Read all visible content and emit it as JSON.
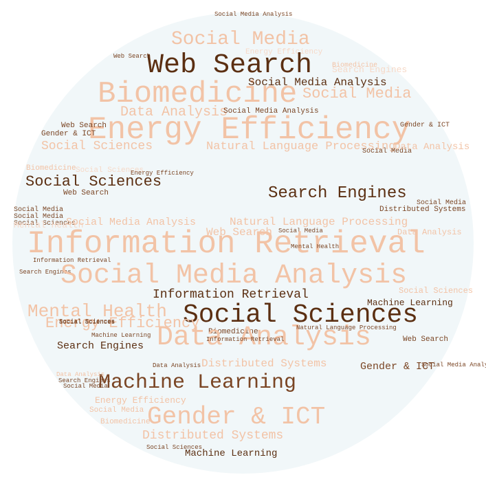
{
  "colors": {
    "background": "#ffffff",
    "circle": "#f1f7f9",
    "dark": "#5b2f12",
    "brown": "#7a4524",
    "light": "#f2c3a6",
    "faint": "#f6d9c8"
  },
  "words": [
    {
      "text": "Social Media Analysis",
      "tone": "brown"
    },
    {
      "text": "Social Media",
      "tone": "light"
    },
    {
      "text": "Energy Efficiency",
      "tone": "faint"
    },
    {
      "text": "Web Search",
      "tone": "dark"
    },
    {
      "text": "Web Search",
      "tone": "brown"
    },
    {
      "text": "Biomedicine",
      "tone": "light"
    },
    {
      "text": "Search Engines",
      "tone": "faint"
    },
    {
      "text": "Social Media Analysis",
      "tone": "dark"
    },
    {
      "text": "Biomedicine",
      "tone": "light"
    },
    {
      "text": "Social Media",
      "tone": "light"
    },
    {
      "text": "Data Analysis",
      "tone": "light"
    },
    {
      "text": "Social Media Analysis",
      "tone": "brown"
    },
    {
      "text": "Energy Efficiency",
      "tone": "light"
    },
    {
      "text": "Web Search",
      "tone": "brown"
    },
    {
      "text": "Gender & ICT",
      "tone": "brown"
    },
    {
      "text": "Gender & ICT",
      "tone": "brown"
    },
    {
      "text": "Social Sciences",
      "tone": "light"
    },
    {
      "text": "Natural Language Processing",
      "tone": "light"
    },
    {
      "text": "Social Media",
      "tone": "brown"
    },
    {
      "text": "Data Analysis",
      "tone": "light"
    },
    {
      "text": "Biomedicine",
      "tone": "light"
    },
    {
      "text": "Social Sciences",
      "tone": "faint"
    },
    {
      "text": "Energy Efficiency",
      "tone": "brown"
    },
    {
      "text": "Social Sciences",
      "tone": "dark"
    },
    {
      "text": "Web Search",
      "tone": "brown"
    },
    {
      "text": "Search Engines",
      "tone": "dark"
    },
    {
      "text": "Social Media",
      "tone": "brown"
    },
    {
      "text": "Distributed Systems",
      "tone": "brown"
    },
    {
      "text": "Social Media",
      "tone": "brown"
    },
    {
      "text": "Social Media",
      "tone": "brown"
    },
    {
      "text": "Social Sciences",
      "tone": "brown"
    },
    {
      "text": "Mental Health",
      "tone": "faint"
    },
    {
      "text": "Social Media Analysis",
      "tone": "light"
    },
    {
      "text": "Natural Language Processing",
      "tone": "light"
    },
    {
      "text": "Web Search",
      "tone": "light"
    },
    {
      "text": "Social Media",
      "tone": "brown"
    },
    {
      "text": "Data Analysis",
      "tone": "light"
    },
    {
      "text": "Information Retrieval",
      "tone": "light"
    },
    {
      "text": "Mental Health",
      "tone": "brown"
    },
    {
      "text": "Information Retrieval",
      "tone": "brown"
    },
    {
      "text": "Search Engines",
      "tone": "brown"
    },
    {
      "text": "Social Media Analysis",
      "tone": "light"
    },
    {
      "text": "Information Retrieval",
      "tone": "dark"
    },
    {
      "text": "Mental Health",
      "tone": "light"
    },
    {
      "text": "Social Sciences",
      "tone": "light"
    },
    {
      "text": "Machine Learning",
      "tone": "dark"
    },
    {
      "text": "Social Sciences",
      "tone": "dark"
    },
    {
      "text": "Energy Efficiency",
      "tone": "light"
    },
    {
      "text": "Biomedicine",
      "tone": "brown"
    },
    {
      "text": "Social Sciences",
      "tone": "brown"
    },
    {
      "text": "Machine Learning",
      "tone": "brown"
    },
    {
      "text": "Data Analysis",
      "tone": "light"
    },
    {
      "text": "Search Engines",
      "tone": "dark"
    },
    {
      "text": "Web Search",
      "tone": "brown"
    },
    {
      "text": "Gender & ICT",
      "tone": "brown"
    },
    {
      "text": "Data Analysis",
      "tone": "brown"
    },
    {
      "text": "Distributed Systems",
      "tone": "light"
    },
    {
      "text": "Machine Learning",
      "tone": "brown"
    },
    {
      "text": "Energy Efficiency",
      "tone": "light"
    },
    {
      "text": "Gender & ICT",
      "tone": "light"
    },
    {
      "text": "Social Media",
      "tone": "light"
    },
    {
      "text": "Biomedicine",
      "tone": "light"
    },
    {
      "text": "Distributed Systems",
      "tone": "light"
    },
    {
      "text": "Social Sciences",
      "tone": "brown"
    },
    {
      "text": "Machine Learning",
      "tone": "dark"
    },
    {
      "text": "Data Analysis",
      "tone": "light"
    },
    {
      "text": "Social Media",
      "tone": "brown"
    },
    {
      "text": "Search Engines",
      "tone": "brown"
    },
    {
      "text": "Natural Language Processing",
      "tone": "brown"
    },
    {
      "text": "Information Retrieval",
      "tone": "brown"
    },
    {
      "text": "Social Sciences",
      "tone": "brown"
    },
    {
      "text": "Social Media Analysis",
      "tone": "brown"
    }
  ]
}
